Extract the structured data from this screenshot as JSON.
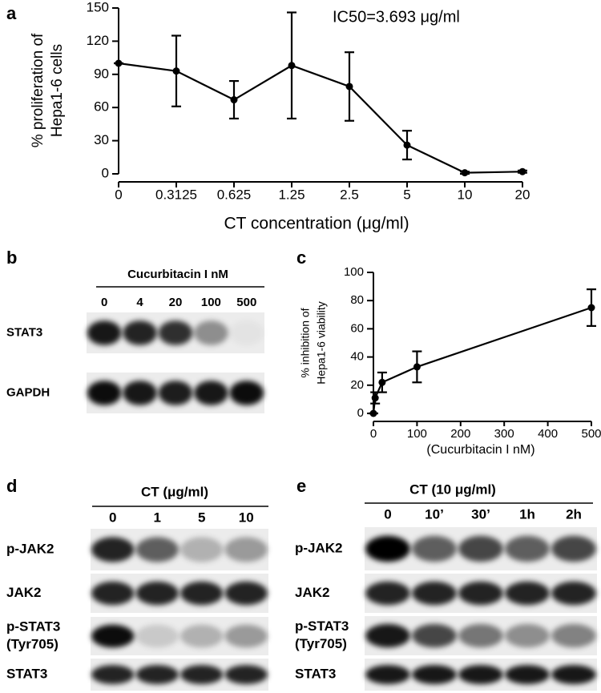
{
  "chart_data": [
    {
      "type": "line",
      "panel": "a",
      "annotation": "IC50=3.693 μg/ml",
      "ylabel": [
        "% proliferation of",
        "Hepa1-6 cells"
      ],
      "xlabel": "CT concentration (μg/ml)",
      "categories": [
        "0",
        "0.3125",
        "0.625",
        "1.25",
        "2.5",
        "5",
        "10",
        "20"
      ],
      "values": [
        100,
        93,
        67,
        98,
        79,
        26,
        1,
        2
      ],
      "error": [
        0,
        32,
        17,
        48,
        31,
        13,
        1,
        1
      ],
      "ylim": [
        0,
        150
      ],
      "yticks": [
        0,
        30,
        60,
        90,
        120,
        150
      ],
      "color": "#000000"
    },
    {
      "type": "line",
      "panel": "c",
      "ylabel": [
        "% inhibition of",
        "Hepa1-6 viability"
      ],
      "xlabel": "(Cucurbitacin I nM)",
      "x": [
        0,
        4,
        20,
        100,
        500
      ],
      "values": [
        0,
        11,
        22,
        33,
        75
      ],
      "error": [
        0,
        4,
        7,
        11,
        13
      ],
      "xlim": [
        0,
        500
      ],
      "xticks": [
        0,
        100,
        200,
        300,
        400,
        500
      ],
      "ylim": [
        0,
        100
      ],
      "yticks": [
        0,
        20,
        40,
        60,
        80,
        100
      ],
      "color": "#000000"
    }
  ],
  "blots": [
    {
      "panel": "b",
      "header": "Cucurbitacin I nM",
      "lanes": [
        "0",
        "4",
        "20",
        "100",
        "500"
      ],
      "rows": [
        [
          "STAT3"
        ],
        [
          "GAPDH"
        ]
      ]
    },
    {
      "panel": "d",
      "header": "CT (μg/ml)",
      "lanes": [
        "0",
        "1",
        "5",
        "10"
      ],
      "rows": [
        [
          "p-JAK2"
        ],
        [
          "JAK2"
        ],
        [
          "p-STAT3",
          "(Tyr705)"
        ],
        [
          "STAT3"
        ]
      ]
    },
    {
      "panel": "e",
      "header": "CT (10 μg/ml)",
      "lanes": [
        "0",
        "10’",
        "30’",
        "1h",
        "2h"
      ],
      "rows": [
        [
          "p-JAK2"
        ],
        [
          "JAK2"
        ],
        [
          "p-STAT3",
          "(Tyr705)"
        ],
        [
          "STAT3"
        ]
      ]
    }
  ]
}
